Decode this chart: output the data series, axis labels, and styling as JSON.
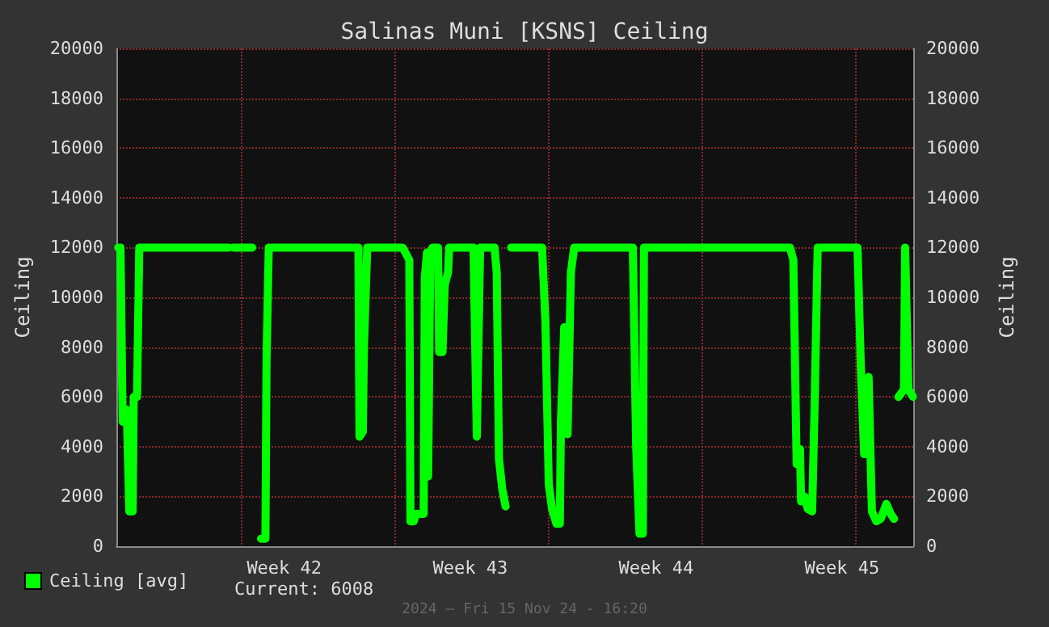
{
  "chart_data": {
    "type": "line",
    "title": "Salinas Muni [KSNS] Ceiling",
    "ylabel": "Ceiling",
    "y2label": "Ceiling",
    "annotations": [
      "Current: 6008",
      "2024 — Fri 15 Nov 24 - 16:20"
    ],
    "xlim": [
      "2024-10-16T16:20",
      "2024-11-15T16:20"
    ],
    "xticks": [
      {
        "value": "2024-10-23",
        "label": "Week 42"
      },
      {
        "value": "2024-10-30",
        "label": "Week 43"
      },
      {
        "value": "2024-11-06",
        "label": "Week 44"
      },
      {
        "value": "2024-11-13",
        "label": "Week 45"
      }
    ],
    "ylim": [
      0,
      20000
    ],
    "yticks": [
      0,
      2000,
      4000,
      6000,
      8000,
      10000,
      12000,
      14000,
      16000,
      18000,
      20000
    ],
    "y2lim": [
      0,
      20000
    ],
    "y2ticks": [
      0,
      2000,
      4000,
      6000,
      8000,
      10000,
      12000,
      14000,
      16000,
      18000,
      20000
    ],
    "grid": true,
    "legend": "bottom left",
    "marker": "none",
    "line_style": "solid",
    "series": [
      {
        "name": "Ceiling [avg]",
        "color": "#00ff00",
        "x": [
          "2024-10-16T18:00",
          "2024-10-16T20:00",
          "2024-10-16T22:00",
          "2024-10-17T01:00",
          "2024-10-17T02:00",
          "2024-10-17T04:00",
          "2024-10-17T07:00",
          "2024-10-17T08:00",
          "2024-10-17T11:00",
          "2024-10-17T13:00",
          "2024-10-20T22:00",
          "2024-10-21T00:00",
          "2024-10-21T02:00",
          "2024-10-21T19:00",
          "2024-10-21T22:00",
          "2024-10-22T03:00",
          "2024-10-22T07:00",
          "2024-10-22T08:00",
          "2024-10-22T10:00",
          "2024-10-25T19:00",
          "2024-10-25T20:00",
          "2024-10-25T23:00",
          "2024-10-26T00:00",
          "2024-10-26T03:00",
          "2024-10-27T11:00",
          "2024-10-27T17:00",
          "2024-10-27T18:00",
          "2024-10-27T21:00",
          "2024-10-27T23:00",
          "2024-10-28T06:00",
          "2024-10-28T07:00",
          "2024-10-28T09:00",
          "2024-10-28T10:00",
          "2024-10-28T12:00",
          "2024-10-28T14:00",
          "2024-10-28T19:00",
          "2024-10-28T20:00",
          "2024-10-28T23:00",
          "2024-10-29T01:00",
          "2024-10-29T04:00",
          "2024-10-29T05:00",
          "2024-10-30T03:00",
          "2024-10-30T06:00",
          "2024-10-30T09:00",
          "2024-10-30T22:00",
          "2024-10-31T00:00",
          "2024-10-31T02:00",
          "2024-10-31T05:00",
          "2024-10-31T08:00",
          "2024-10-31T10:00",
          "2024-10-31T13:00",
          "2024-11-01T17:00",
          "2024-11-01T20:00",
          "2024-11-01T23:00",
          "2024-11-02T02:00",
          "2024-11-02T06:00",
          "2024-11-02T09:00",
          "2024-11-02T10:00",
          "2024-11-02T13:00",
          "2024-11-02T16:00",
          "2024-11-02T18:00",
          "2024-11-02T19:00",
          "2024-11-02T22:00",
          "2024-11-05T03:00",
          "2024-11-05T06:00",
          "2024-11-05T09:00",
          "2024-11-05T12:00",
          "2024-11-05T13:00",
          "2024-11-11T01:00",
          "2024-11-11T04:00",
          "2024-11-11T07:00",
          "2024-11-11T10:00",
          "2024-11-11T11:00",
          "2024-11-11T14:00",
          "2024-11-11T17:00",
          "2024-11-11T21:00",
          "2024-11-11T23:00",
          "2024-11-12T02:00",
          "2024-11-13T14:00",
          "2024-11-13T17:00",
          "2024-11-13T20:00",
          "2024-11-13T22:00",
          "2024-11-14T00:00",
          "2024-11-14T01:00",
          "2024-11-14T03:00",
          "2024-11-14T07:00",
          "2024-11-14T11:00",
          "2024-11-14T16:00",
          "2024-11-14T20:00",
          "2024-11-14T23:00",
          "2024-11-15T01:00",
          "2024-11-15T03:00",
          "2024-11-15T08:00",
          "2024-11-15T09:00",
          "2024-11-15T12:00",
          "2024-11-15T16:00"
        ],
        "values": [
          12000,
          12000,
          5000,
          5500,
          5000,
          1400,
          1400,
          6000,
          6000,
          12000,
          12000,
          null,
          12000,
          12000,
          null,
          300,
          300,
          7500,
          12000,
          12000,
          4400,
          4600,
          8000,
          12000,
          12000,
          11500,
          1000,
          1000,
          1300,
          1300,
          10800,
          11800,
          2800,
          11800,
          12000,
          12000,
          7800,
          7800,
          10500,
          11000,
          12000,
          12000,
          4400,
          12000,
          12000,
          11000,
          3500,
          2300,
          1600,
          null,
          12000,
          12000,
          9000,
          2500,
          1500,
          900,
          900,
          5000,
          8800,
          4500,
          8800,
          11000,
          12000,
          12000,
          4000,
          500,
          500,
          12000,
          12000,
          11500,
          3300,
          3900,
          1800,
          2000,
          1500,
          1400,
          5200,
          12000,
          12000,
          7200,
          3700,
          3700,
          6800,
          6800,
          1400,
          1000,
          1100,
          1700,
          1300,
          1100,
          null,
          6000,
          6300,
          12000,
          6300,
          6008
        ]
      }
    ]
  }
}
